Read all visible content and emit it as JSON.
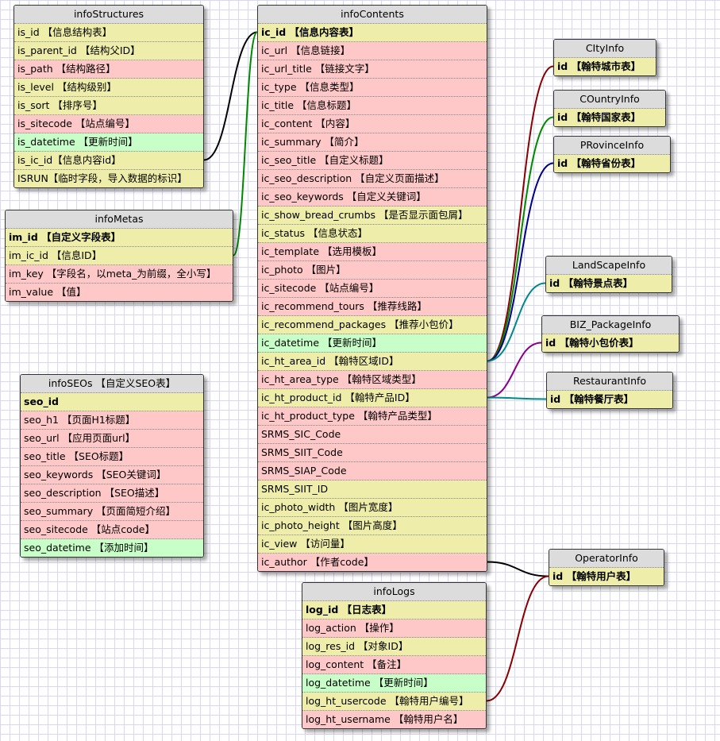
{
  "colors": {
    "yellow": "#eeeeaa",
    "pink": "#ffc8c8",
    "green": "#c8ffc8",
    "header": "#dcdcdc"
  },
  "tables": [
    {
      "id": "infoStructures",
      "title": "infoStructures",
      "rows": [
        {
          "text": "is_id 【信息结构表】",
          "c": "y"
        },
        {
          "text": "is_parent_id 【结构父ID】",
          "c": "y"
        },
        {
          "text": "is_path 【结构路径】",
          "c": "p"
        },
        {
          "text": "is_level 【结构级别】",
          "c": "y"
        },
        {
          "text": "is_sort 【排序号】",
          "c": "y"
        },
        {
          "text": "is_sitecode 【站点编号】",
          "c": "p"
        },
        {
          "text": "is_datetime 【更新时间】",
          "c": "g"
        },
        {
          "text": "is_ic_id【信息内容id】",
          "c": "y"
        },
        {
          "text": "ISRUN【临时字段，导入数据的标识】",
          "c": "y"
        }
      ]
    },
    {
      "id": "infoMetas",
      "title": "infoMetas",
      "rows": [
        {
          "text": "im_id 【自定义字段表】",
          "c": "y",
          "bold": true
        },
        {
          "text": "im_ic_id 【信息ID】",
          "c": "y"
        },
        {
          "text": "im_key 【字段名，以meta_为前缀，全小写】",
          "c": "p"
        },
        {
          "text": "im_value 【值】",
          "c": "p"
        }
      ]
    },
    {
      "id": "infoSEOs",
      "title": "infoSEOs 【自定义SEO表】",
      "rows": [
        {
          "text": "seo_id",
          "c": "y",
          "bold": true
        },
        {
          "text": "seo_h1 【页面H1标题】",
          "c": "p"
        },
        {
          "text": "seo_url 【应用页面url】",
          "c": "p"
        },
        {
          "text": "seo_title 【SEO标题】",
          "c": "p"
        },
        {
          "text": "seo_keywords 【SEO关键词】",
          "c": "p"
        },
        {
          "text": "seo_description 【SEO描述】",
          "c": "p"
        },
        {
          "text": "seo_summary 【页面简短介绍】",
          "c": "p"
        },
        {
          "text": "seo_sitecode 【站点code】",
          "c": "p"
        },
        {
          "text": "seo_datetime 【添加时间】",
          "c": "g"
        }
      ]
    },
    {
      "id": "infoContents",
      "title": "infoContents",
      "rows": [
        {
          "text": "ic_id 【信息内容表】",
          "c": "y",
          "bold": true
        },
        {
          "text": "ic_url 【信息链接】",
          "c": "p"
        },
        {
          "text": "ic_url_title 【链接文字】",
          "c": "p"
        },
        {
          "text": "ic_type 【信息类型】",
          "c": "p"
        },
        {
          "text": "ic_title 【信息标题】",
          "c": "p"
        },
        {
          "text": "ic_content 【内容】",
          "c": "p"
        },
        {
          "text": "ic_summary 【简介】",
          "c": "p"
        },
        {
          "text": "ic_seo_title 【自定义标题】",
          "c": "p"
        },
        {
          "text": "ic_seo_description 【自定义页面描述】",
          "c": "p"
        },
        {
          "text": "ic_seo_keywords 【自定义关键词】",
          "c": "p"
        },
        {
          "text": "ic_show_bread_crumbs 【是否显示面包屑】",
          "c": "y"
        },
        {
          "text": "ic_status 【信息状态】",
          "c": "y"
        },
        {
          "text": "ic_template 【选用模板】",
          "c": "p"
        },
        {
          "text": "ic_photo 【图片】",
          "c": "p"
        },
        {
          "text": "ic_sitecode 【站点编号】",
          "c": "p"
        },
        {
          "text": "ic_recommend_tours 【推荐线路】",
          "c": "p"
        },
        {
          "text": "ic_recommend_packages 【推荐小包价】",
          "c": "y"
        },
        {
          "text": "ic_datetime 【更新时间】",
          "c": "g"
        },
        {
          "text": "ic_ht_area_id 【翰特区域ID】",
          "c": "y"
        },
        {
          "text": "ic_ht_area_type 【翰特区域类型】",
          "c": "p"
        },
        {
          "text": "ic_ht_product_id 【翰特产品ID】",
          "c": "y"
        },
        {
          "text": "ic_ht_product_type 【翰特产品类型】",
          "c": "p"
        },
        {
          "text": "SRMS_SIC_Code",
          "c": "p"
        },
        {
          "text": "SRMS_SIIT_Code",
          "c": "p"
        },
        {
          "text": "SRMS_SIAP_Code",
          "c": "p"
        },
        {
          "text": "SRMS_SIIT_ID",
          "c": "y"
        },
        {
          "text": "ic_photo_width 【图片宽度】",
          "c": "y"
        },
        {
          "text": "ic_photo_height 【图片高度】",
          "c": "y"
        },
        {
          "text": "ic_view 【访问量】",
          "c": "y"
        },
        {
          "text": "ic_author 【作者code】",
          "c": "p"
        }
      ]
    },
    {
      "id": "infoLogs",
      "title": "infoLogs",
      "rows": [
        {
          "text": "log_id 【日志表】",
          "c": "y",
          "bold": true
        },
        {
          "text": "log_action 【操作】",
          "c": "p"
        },
        {
          "text": "log_res_id 【对象ID】",
          "c": "y"
        },
        {
          "text": "log_content 【备注】",
          "c": "p"
        },
        {
          "text": "log_datetime 【更新时间】",
          "c": "g"
        },
        {
          "text": "log_ht_usercode 【翰特用户编号】",
          "c": "y"
        },
        {
          "text": "log_ht_username 【翰特用户名】",
          "c": "p"
        }
      ]
    },
    {
      "id": "CItyInfo",
      "title": "CItyInfo",
      "rows": [
        {
          "text": "id 【翰特城市表】",
          "c": "y",
          "bold": true
        }
      ]
    },
    {
      "id": "COuntryInfo",
      "title": "COuntryInfo",
      "rows": [
        {
          "text": "id 【翰特国家表】",
          "c": "y",
          "bold": true
        }
      ]
    },
    {
      "id": "PRovinceInfo",
      "title": "PRovinceInfo",
      "rows": [
        {
          "text": "id 【翰特省份表】",
          "c": "y",
          "bold": true
        }
      ]
    },
    {
      "id": "LandScapeInfo",
      "title": "LandScapeInfo",
      "rows": [
        {
          "text": "id 【翰特景点表】",
          "c": "y",
          "bold": true
        }
      ]
    },
    {
      "id": "BIZ_PackageInfo",
      "title": "BIZ_PackageInfo",
      "rows": [
        {
          "text": "id 【翰特小包价表】",
          "c": "y",
          "bold": true
        }
      ]
    },
    {
      "id": "RestaurantInfo",
      "title": "RestaurantInfo",
      "rows": [
        {
          "text": "id 【翰特餐厅表】",
          "c": "y",
          "bold": true
        }
      ]
    },
    {
      "id": "OperatorInfo",
      "title": "OperatorInfo",
      "rows": [
        {
          "text": "id 【翰特用户表】",
          "c": "y",
          "bold": true
        }
      ]
    }
  ],
  "relations": [
    {
      "from": "infoStructures.is_ic_id",
      "to": "infoContents.ic_id",
      "color": "#000000"
    },
    {
      "from": "infoMetas.im_ic_id",
      "to": "infoContents.ic_id",
      "color": "#008800"
    },
    {
      "from": "infoContents.ic_ht_area_id",
      "to": "CItyInfo.id",
      "color": "#880000"
    },
    {
      "from": "infoContents.ic_ht_area_id",
      "to": "COuntryInfo.id",
      "color": "#008800"
    },
    {
      "from": "infoContents.ic_ht_area_id",
      "to": "PRovinceInfo.id",
      "color": "#000088"
    },
    {
      "from": "infoContents.ic_ht_area_id",
      "to": "LandScapeInfo.id",
      "color": "#008888"
    },
    {
      "from": "infoContents.ic_ht_product_id",
      "to": "BIZ_PackageInfo.id",
      "color": "#880088"
    },
    {
      "from": "infoContents.ic_ht_product_id",
      "to": "RestaurantInfo.id",
      "color": "#008888"
    },
    {
      "from": "infoContents.ic_author",
      "to": "OperatorInfo.id",
      "color": "#000000"
    },
    {
      "from": "infoLogs.log_ht_usercode",
      "to": "OperatorInfo.id",
      "color": "#880000"
    }
  ]
}
